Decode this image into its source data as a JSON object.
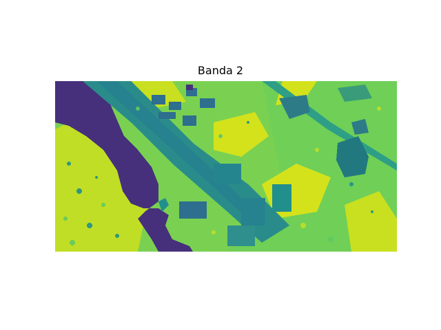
{
  "figure": {
    "title": "Banda 2"
  },
  "palette": {
    "water": "#46307c",
    "teal": "#21908c",
    "dark_teal": "#2e6e8e",
    "green": "#5fc961",
    "light_green": "#7ad151",
    "yellow_green": "#bddf26",
    "yellow": "#dde318"
  }
}
